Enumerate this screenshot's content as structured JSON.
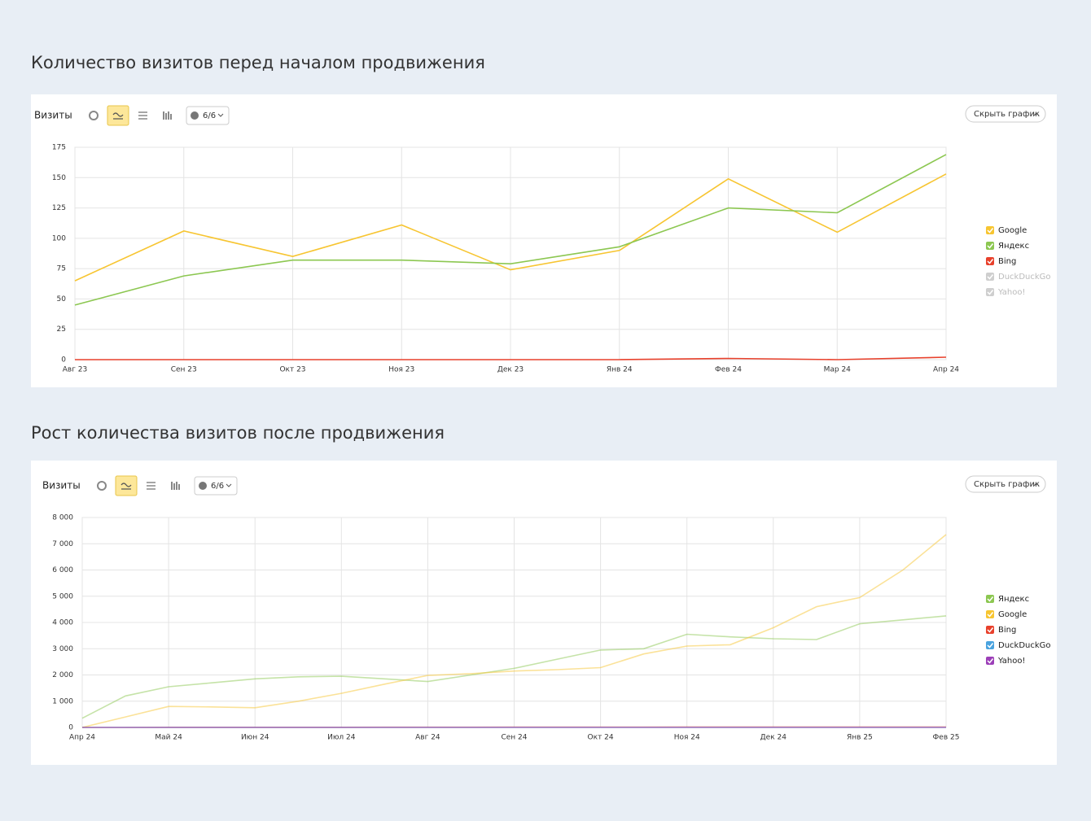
{
  "chart_data": [
    {
      "type": "line",
      "title": "Количество визитов перед началом продвижения",
      "metric_label": "Визиты",
      "segments_label": "6/6",
      "hide_button": "Скрыть график",
      "categories": [
        "Авг 23",
        "Сен 23",
        "Окт 23",
        "Ноя 23",
        "Дек 23",
        "Янв 24",
        "Фев 24",
        "Мар 24",
        "Апр 24"
      ],
      "series": [
        {
          "name": "Google",
          "color": "#f7c531",
          "values": [
            65,
            106,
            85,
            111,
            74,
            90,
            149,
            105,
            153
          ]
        },
        {
          "name": "Яндекс",
          "color": "#8cc751",
          "values": [
            45,
            69,
            82,
            82,
            79,
            93,
            125,
            121,
            169
          ]
        },
        {
          "name": "Bing",
          "color": "#e8412c",
          "values": [
            0,
            0,
            0,
            0,
            0,
            0,
            1,
            0,
            2
          ]
        },
        {
          "name": "DuckDuckGo",
          "color": "#c8c8c8",
          "visible": false
        },
        {
          "name": "Yahoo!",
          "color": "#c8c8c8",
          "visible": false
        }
      ],
      "ylim": [
        0,
        175
      ],
      "yticks": [
        0,
        25,
        50,
        75,
        100,
        125,
        150,
        175
      ],
      "grid": true
    },
    {
      "type": "line",
      "title": "Рост количества визитов после продвижения",
      "metric_label": "Визиты",
      "segments_label": "6/6",
      "hide_button": "Скрыть график",
      "categories": [
        "Апр 24",
        null,
        "Май 24",
        null,
        "Июн 24",
        null,
        "Июл 24",
        null,
        "Авг 24",
        null,
        "Сен 24",
        null,
        "Окт 24",
        null,
        "Ноя 24",
        null,
        "Дек 24",
        null,
        "Янв 25",
        null,
        "Фев 25"
      ],
      "series": [
        {
          "name": "Яндекс",
          "color": "#8cc751",
          "values": [
            350,
            1200,
            1550,
            1700,
            1850,
            1930,
            1950,
            1850,
            1750,
            2000,
            2250,
            2600,
            2950,
            3000,
            3550,
            3450,
            3380,
            3350,
            3950,
            4100,
            4250
          ]
        },
        {
          "name": "Google",
          "color": "#f7c531",
          "values": [
            0,
            400,
            800,
            780,
            750,
            1000,
            1300,
            1650,
            1980,
            2050,
            2150,
            2200,
            2280,
            2800,
            3100,
            3150,
            3800,
            4600,
            4950,
            6000,
            7350
          ]
        },
        {
          "name": "Bing",
          "color": "#e8412c",
          "values": [
            0,
            0,
            5,
            5,
            5,
            5,
            5,
            10,
            10,
            10,
            15,
            15,
            15,
            15,
            20,
            20,
            20,
            20,
            20,
            20,
            20
          ]
        },
        {
          "name": "DuckDuckGo",
          "color": "#4aa3df",
          "values": [
            0,
            0,
            0,
            0,
            0,
            0,
            0,
            0,
            0,
            0,
            0,
            0,
            0,
            0,
            0,
            0,
            0,
            0,
            0,
            0,
            0
          ]
        },
        {
          "name": "Yahoo!",
          "color": "#9c3fb8",
          "values": [
            0,
            0,
            0,
            0,
            0,
            0,
            0,
            0,
            0,
            0,
            0,
            0,
            0,
            0,
            0,
            0,
            0,
            0,
            0,
            0,
            0
          ]
        }
      ],
      "ylim": [
        0,
        8000
      ],
      "yticks": [
        0,
        {
          "value": 1000,
          "label": "1 000"
        },
        {
          "value": 2000,
          "label": "2 000"
        },
        {
          "value": 3000,
          "label": "3 000"
        },
        {
          "value": 4000,
          "label": "4 000"
        },
        {
          "value": 5000,
          "label": "5 000"
        },
        {
          "value": 6000,
          "label": "6 000"
        },
        {
          "value": 7000,
          "label": "7 000"
        },
        {
          "value": 8000,
          "label": "8 000"
        }
      ],
      "grid": true
    }
  ]
}
